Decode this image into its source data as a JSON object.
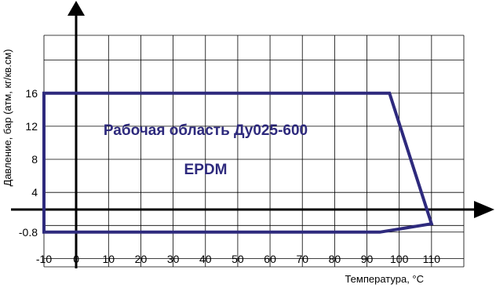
{
  "chart_data": {
    "type": "line",
    "title": "",
    "xlabel": "Температура, °C",
    "ylabel": "Давление, бар (атм, кг/кв.см)",
    "xlim": [
      -10,
      120
    ],
    "ylim": [
      -5,
      23
    ],
    "grid": true,
    "x_ticks": [
      "-10",
      "0",
      "10",
      "20",
      "30",
      "40",
      "50",
      "60",
      "70",
      "80",
      "90",
      "100",
      "110"
    ],
    "y_ticks": [
      "16",
      "12",
      "8",
      "4",
      "-0.8"
    ],
    "series": [
      {
        "points": [
          [
            -10,
            16
          ],
          [
            97,
            16
          ],
          [
            110,
            0.2
          ],
          [
            94,
            -0.8
          ],
          [
            -10,
            -0.8
          ]
        ],
        "closed": true,
        "color": "#2e2a7d"
      }
    ],
    "annotations": [
      "Рабочая область Ду025-600",
      "EPDM"
    ],
    "colors": {
      "region_stroke": "#2e2a7d",
      "annotation_text": "#2e2a7d",
      "grid": "#000000",
      "axis": "#000000"
    }
  }
}
